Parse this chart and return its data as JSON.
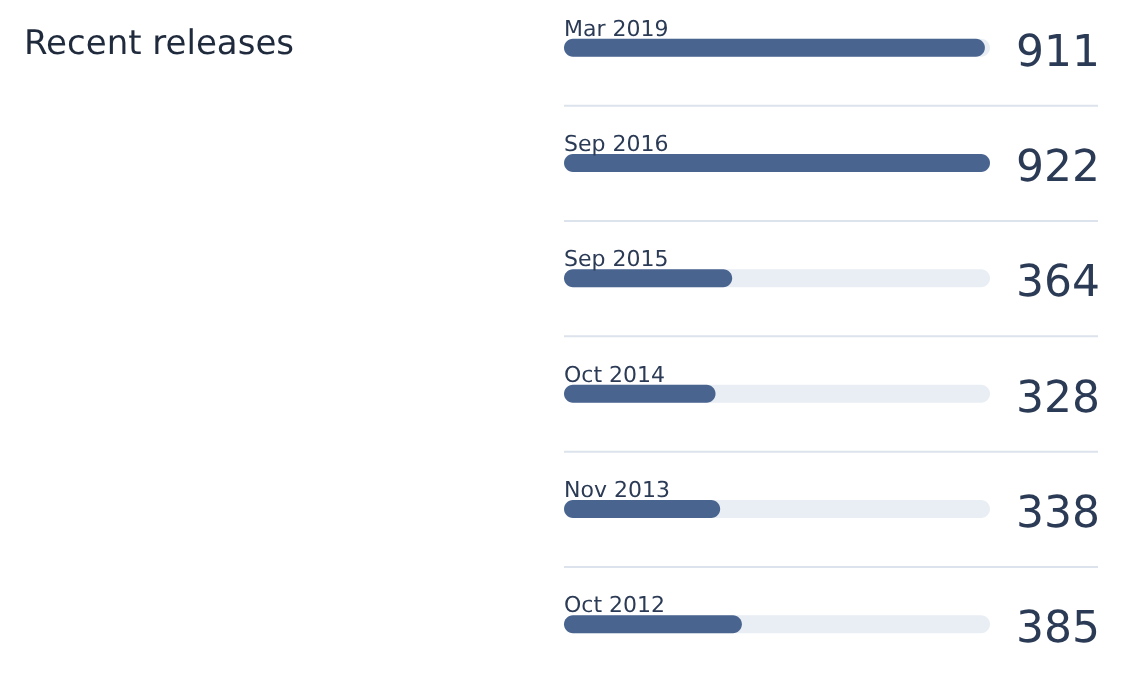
{
  "chart_data": {
    "type": "bar",
    "orientation": "horizontal",
    "title": "Recent releases",
    "categories": [
      "Mar 2019",
      "Sep 2016",
      "Sep 2015",
      "Oct 2014",
      "Nov 2013",
      "Oct 2012"
    ],
    "values": [
      911,
      922,
      364,
      328,
      338,
      385
    ],
    "color": "#4a6490",
    "xlim": [
      0,
      922
    ],
    "data_labels": true,
    "tick_labels": false
  }
}
